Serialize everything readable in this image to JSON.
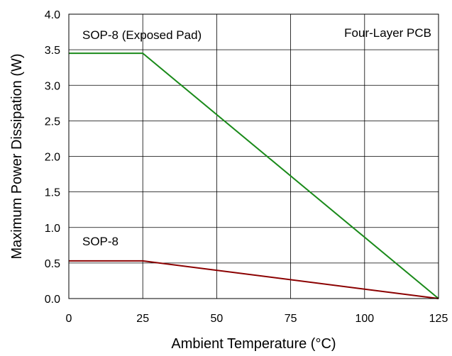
{
  "chart_data": {
    "type": "line",
    "title": "",
    "xlabel": "Ambient Temperature (°C)",
    "ylabel": "Maximum Power Dissipation (W)",
    "xlim": [
      0,
      125
    ],
    "ylim": [
      0,
      4.0
    ],
    "xticks": [
      0,
      25,
      50,
      75,
      100,
      125
    ],
    "yticks": [
      0,
      0.5,
      1.0,
      1.5,
      2.0,
      2.5,
      3.0,
      3.5,
      4.0
    ],
    "xtick_labels": [
      "0",
      "25",
      "50",
      "75",
      "100",
      "125"
    ],
    "ytick_labels": [
      "0.0",
      "0.5",
      "1.0",
      "1.5",
      "2.0",
      "2.5",
      "3.0",
      "3.5",
      "4.0"
    ],
    "grid": true,
    "annotations": {
      "board": "Four-Layer PCB",
      "exposed_pad": "SOP-8 (Exposed Pad)",
      "sop8": "SOP-8"
    },
    "series": [
      {
        "key": "exposed",
        "color": "#1a8a1a",
        "x": [
          0,
          25,
          125
        ],
        "y": [
          3.45,
          3.45,
          0
        ]
      },
      {
        "key": "sop8",
        "color": "#8b0000",
        "x": [
          0,
          25,
          125
        ],
        "y": [
          0.53,
          0.53,
          0
        ]
      }
    ]
  }
}
